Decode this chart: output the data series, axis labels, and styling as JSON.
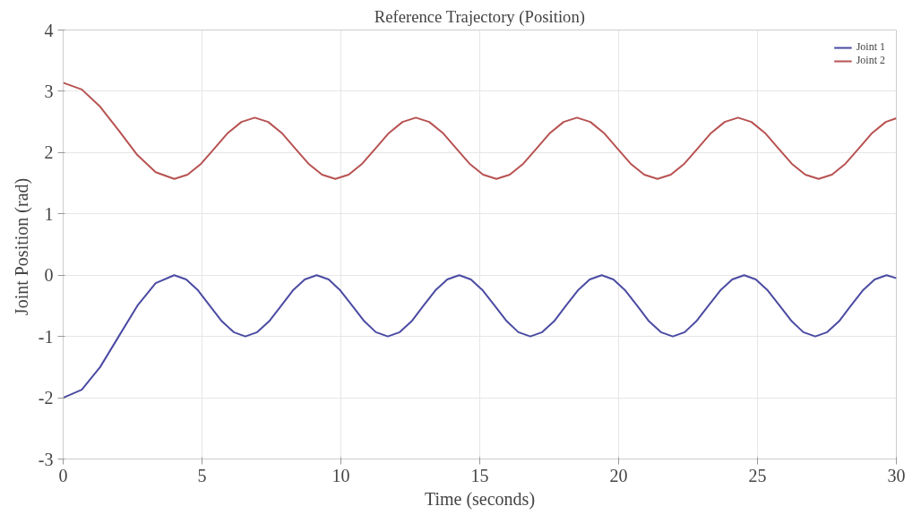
{
  "chart_data": {
    "type": "line",
    "title": "Reference Trajectory (Position)",
    "xlabel": "Time (seconds)",
    "ylabel": "Joint Position  (rad)",
    "xlim": [
      0,
      30
    ],
    "ylim": [
      -3,
      4
    ],
    "xticks": [
      0,
      5,
      10,
      15,
      20,
      25,
      30
    ],
    "yticks": [
      -3,
      -2,
      -1,
      0,
      1,
      2,
      3,
      4
    ],
    "grid": true,
    "legend": "top right",
    "line_style": "solid",
    "marker": "none",
    "series": [
      {
        "name": "Joint 1",
        "color": "#4b4ba3",
        "x": [
          0,
          0.67,
          1.33,
          2,
          2.67,
          3.33,
          4.0,
          4.43,
          4.86,
          5.28,
          5.71,
          6.14,
          6.56,
          6.99,
          7.42,
          7.85,
          8.27,
          8.7,
          9.13,
          9.56,
          9.98,
          10.41,
          10.84,
          11.26,
          11.69,
          12.12,
          12.55,
          12.97,
          13.4,
          13.83,
          14.26,
          14.68,
          15.11,
          15.54,
          15.97,
          16.39,
          16.82,
          17.25,
          17.68,
          18.1,
          18.53,
          18.96,
          19.39,
          19.81,
          20.24,
          20.67,
          21.09,
          21.52,
          21.95,
          22.38,
          22.8,
          23.23,
          23.66,
          24.09,
          24.52,
          24.94,
          25.37,
          25.8,
          26.23,
          26.65,
          27.08,
          27.51,
          27.94,
          28.36,
          28.79,
          29.22,
          29.65,
          30
        ],
        "values": [
          -2,
          -1.87,
          -1.5,
          -1,
          -0.5,
          -0.13,
          0,
          -0.07,
          -0.25,
          -0.5,
          -0.75,
          -0.93,
          -1,
          -0.93,
          -0.75,
          -0.5,
          -0.25,
          -0.07,
          0,
          -0.07,
          -0.25,
          -0.5,
          -0.75,
          -0.93,
          -1,
          -0.93,
          -0.75,
          -0.5,
          -0.25,
          -0.07,
          0,
          -0.07,
          -0.25,
          -0.5,
          -0.75,
          -0.93,
          -1,
          -0.93,
          -0.75,
          -0.5,
          -0.25,
          -0.07,
          0,
          -0.07,
          -0.25,
          -0.5,
          -0.75,
          -0.93,
          -1,
          -0.93,
          -0.75,
          -0.5,
          -0.25,
          -0.07,
          0,
          -0.07,
          -0.25,
          -0.5,
          -0.75,
          -0.93,
          -1,
          -0.93,
          -0.75,
          -0.5,
          -0.25,
          -0.07,
          0,
          -0.05
        ]
      },
      {
        "name": "Joint 2",
        "color": "#b85252",
        "x": [
          0,
          0.67,
          1.33,
          2,
          2.67,
          3.33,
          4.0,
          4.48,
          4.97,
          5.45,
          5.93,
          6.42,
          6.9,
          7.38,
          7.87,
          8.35,
          8.83,
          9.32,
          9.8,
          10.28,
          10.77,
          11.25,
          11.73,
          12.22,
          12.7,
          13.18,
          13.67,
          14.15,
          14.63,
          15.12,
          15.6,
          16.08,
          16.57,
          17.05,
          17.53,
          18.02,
          18.5,
          18.98,
          19.47,
          19.95,
          20.43,
          20.92,
          21.4,
          21.88,
          22.37,
          22.85,
          23.33,
          23.82,
          24.3,
          24.78,
          25.27,
          25.75,
          26.23,
          26.72,
          27.2,
          27.68,
          28.17,
          28.65,
          29.13,
          29.62,
          30
        ],
        "values": [
          3.14,
          3.03,
          2.75,
          2.36,
          1.96,
          1.68,
          1.57,
          1.64,
          1.82,
          2.07,
          2.32,
          2.5,
          2.57,
          2.5,
          2.32,
          2.07,
          1.82,
          1.64,
          1.57,
          1.64,
          1.82,
          2.07,
          2.32,
          2.5,
          2.57,
          2.5,
          2.32,
          2.07,
          1.82,
          1.64,
          1.57,
          1.64,
          1.82,
          2.07,
          2.32,
          2.5,
          2.57,
          2.5,
          2.32,
          2.07,
          1.82,
          1.64,
          1.57,
          1.64,
          1.82,
          2.07,
          2.32,
          2.5,
          2.57,
          2.5,
          2.32,
          2.07,
          1.82,
          1.64,
          1.57,
          1.64,
          1.82,
          2.07,
          2.32,
          2.5,
          2.56
        ]
      }
    ]
  }
}
